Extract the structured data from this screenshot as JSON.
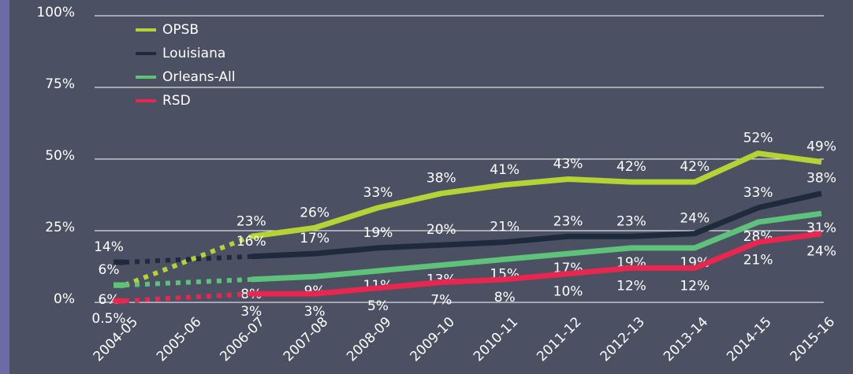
{
  "chart_data": {
    "type": "line",
    "categories": [
      "2004-05",
      "2005-06",
      "2006-07",
      "2007-08",
      "2008-09",
      "2009-10",
      "2010-11",
      "2011-12",
      "2012-13",
      "2013-14",
      "2014-15",
      "2015-16"
    ],
    "series": [
      {
        "name": "OPSB",
        "color": "#b5d334",
        "values": [
          6,
          null,
          23,
          26,
          33,
          38,
          41,
          43,
          42,
          42,
          52,
          49
        ],
        "value_labels": [
          "6%",
          null,
          "23%",
          "26%",
          "33%",
          "38%",
          "41%",
          "43%",
          "42%",
          "42%",
          "52%",
          "49%"
        ]
      },
      {
        "name": "Louisiana",
        "color": "#1f2a3c",
        "values": [
          14,
          null,
          16,
          17,
          19,
          20,
          21,
          23,
          23,
          24,
          33,
          38
        ],
        "value_labels": [
          "14%",
          null,
          "16%",
          "17%",
          "19%",
          "20%",
          "21%",
          "23%",
          "23%",
          "24%",
          "33%",
          "38%"
        ]
      },
      {
        "name": "Orleans-All",
        "color": "#5fc27a",
        "values": [
          6,
          null,
          8,
          9,
          11,
          13,
          15,
          17,
          19,
          19,
          28,
          31
        ],
        "value_labels": [
          "6%",
          null,
          "8%",
          "9%",
          "11%",
          "13%",
          "15%",
          "17%",
          "19%",
          "19%",
          "28%",
          "31%"
        ]
      },
      {
        "name": "RSD",
        "color": "#e8264f",
        "values": [
          0.5,
          null,
          3,
          3,
          5,
          7,
          8,
          10,
          12,
          12,
          21,
          24
        ],
        "value_labels": [
          "0.5%",
          null,
          "3%",
          "3%",
          "5%",
          "7%",
          "8%",
          "10%",
          "12%",
          "12%",
          "21%",
          "24%"
        ]
      }
    ],
    "ylim": [
      0,
      100
    ],
    "yticks": [
      {
        "value": 0,
        "label": "0%"
      },
      {
        "value": 25,
        "label": "25%"
      },
      {
        "value": 50,
        "label": "50%"
      },
      {
        "value": 75,
        "label": "75%"
      },
      {
        "value": 100,
        "label": "100%"
      }
    ],
    "grid": true,
    "legend": "top-left"
  }
}
